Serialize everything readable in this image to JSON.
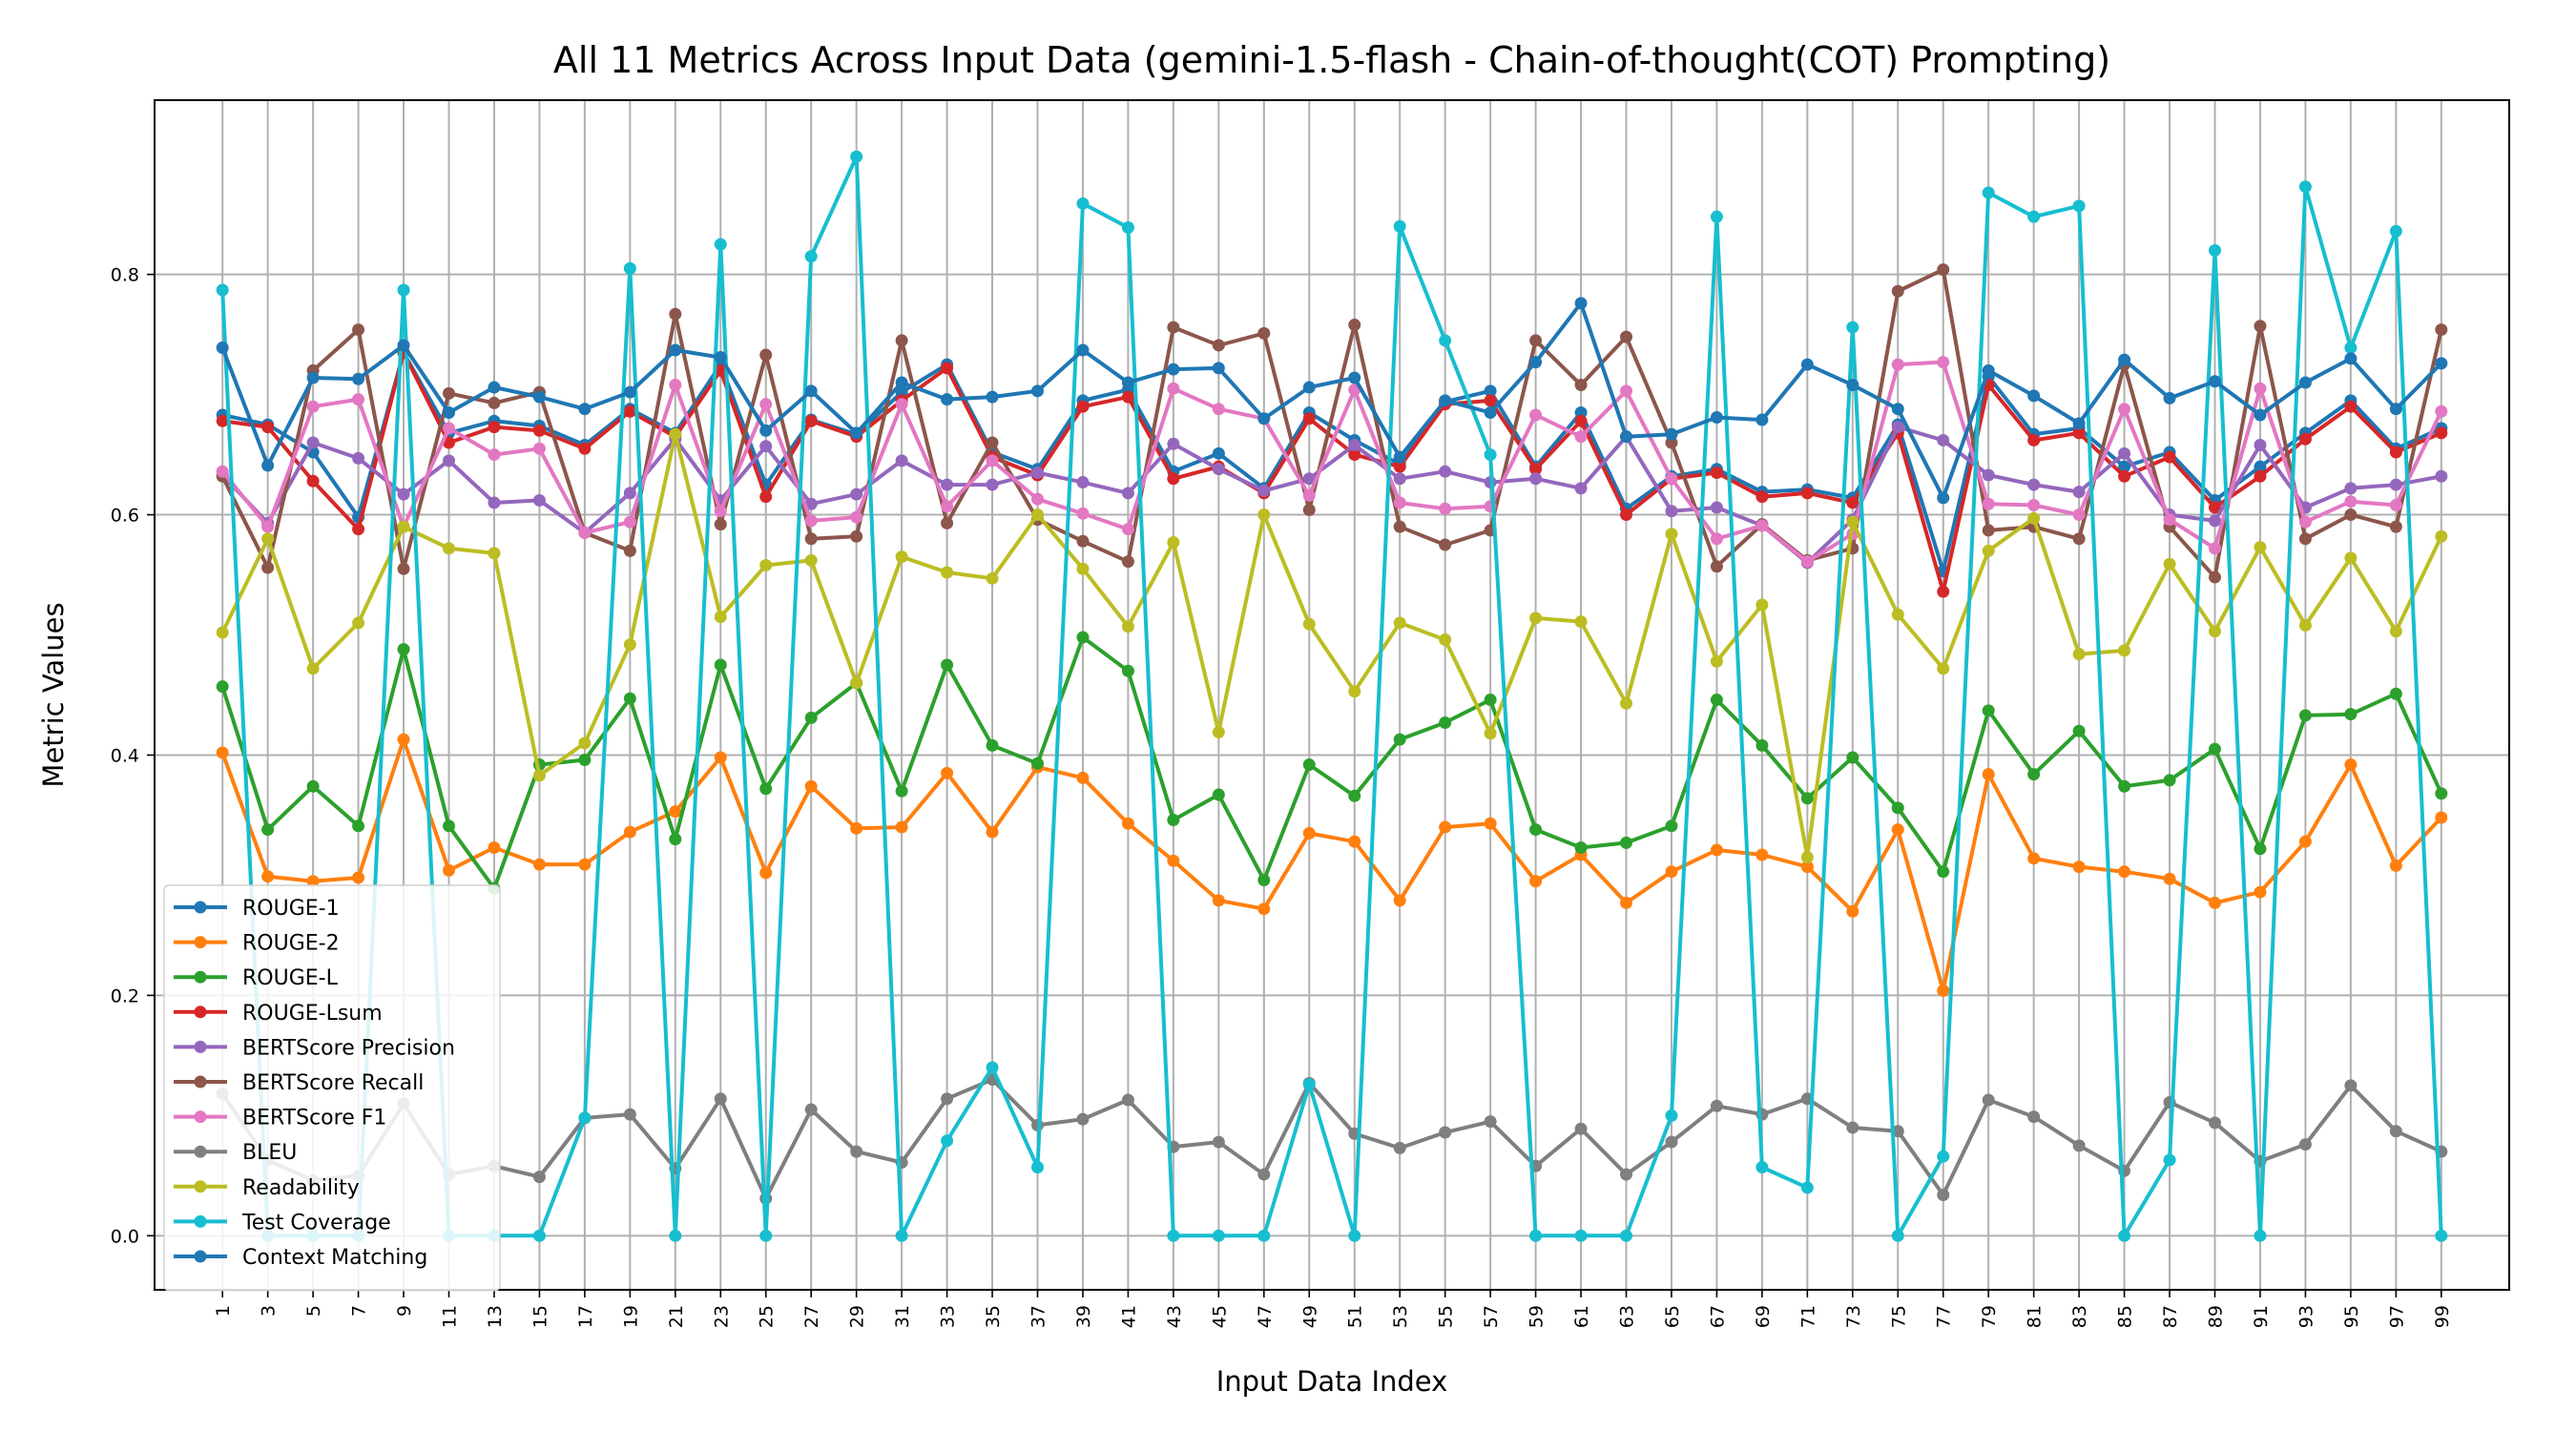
{
  "chart_data": {
    "type": "line",
    "title": "All 11 Metrics Across Input Data (gemini-1.5-flash - Chain-of-thought(COT) Prompting)",
    "xlabel": "Input Data Index",
    "ylabel": "Metric Values",
    "ylim": [
      -0.045,
      0.945
    ],
    "yticks": [
      0.0,
      0.2,
      0.4,
      0.6,
      0.8
    ],
    "ytick_labels": [
      "0.0",
      "0.2",
      "0.4",
      "0.6",
      "0.8"
    ],
    "x": [
      1,
      3,
      5,
      7,
      9,
      11,
      13,
      15,
      17,
      19,
      21,
      23,
      25,
      27,
      29,
      31,
      33,
      35,
      37,
      39,
      41,
      43,
      45,
      47,
      49,
      51,
      53,
      55,
      57,
      59,
      61,
      63,
      65,
      67,
      69,
      71,
      73,
      75,
      77,
      79,
      81,
      83,
      85,
      87,
      89,
      91,
      93,
      95,
      97,
      99
    ],
    "xtick_labels": [
      "1",
      "3",
      "5",
      "7",
      "9",
      "11",
      "13",
      "15",
      "17",
      "19",
      "21",
      "23",
      "25",
      "27",
      "29",
      "31",
      "33",
      "35",
      "37",
      "39",
      "41",
      "43",
      "45",
      "47",
      "49",
      "51",
      "53",
      "55",
      "57",
      "59",
      "61",
      "63",
      "65",
      "67",
      "69",
      "71",
      "73",
      "75",
      "77",
      "79",
      "81",
      "83",
      "85",
      "87",
      "89",
      "91",
      "93",
      "95",
      "97",
      "99"
    ],
    "grid": true,
    "legend_position": "lower-left",
    "series": [
      {
        "name": "ROUGE-1",
        "color": "#1f77b4",
        "values": [
          0.683,
          0.675,
          0.652,
          0.598,
          0.735,
          0.668,
          0.678,
          0.674,
          0.658,
          0.688,
          0.668,
          0.725,
          0.625,
          0.679,
          0.667,
          0.702,
          0.725,
          0.652,
          0.638,
          0.695,
          0.704,
          0.636,
          0.651,
          0.622,
          0.685,
          0.662,
          0.642,
          0.694,
          0.703,
          0.64,
          0.685,
          0.605,
          0.632,
          0.638,
          0.619,
          0.621,
          0.614,
          0.675,
          0.553,
          0.715,
          0.667,
          0.672,
          0.64,
          0.652,
          0.612,
          0.64,
          0.668,
          0.695,
          0.655,
          0.672
        ]
      },
      {
        "name": "ROUGE-2",
        "color": "#ff7f0e",
        "values": [
          0.402,
          0.299,
          0.295,
          0.298,
          0.413,
          0.304,
          0.323,
          0.309,
          0.309,
          0.336,
          0.353,
          0.398,
          0.302,
          0.374,
          0.339,
          0.34,
          0.385,
          0.336,
          0.39,
          0.381,
          0.343,
          0.312,
          0.279,
          0.272,
          0.335,
          0.328,
          0.279,
          0.34,
          0.343,
          0.295,
          0.317,
          0.277,
          0.303,
          0.321,
          0.317,
          0.307,
          0.27,
          0.338,
          0.204,
          0.384,
          0.314,
          0.307,
          0.303,
          0.297,
          0.277,
          0.286,
          0.328,
          0.392,
          0.308,
          0.348
        ]
      },
      {
        "name": "ROUGE-L",
        "color": "#2ca02c",
        "values": [
          0.457,
          0.338,
          0.374,
          0.341,
          0.488,
          0.341,
          0.289,
          0.392,
          0.396,
          0.447,
          0.33,
          0.475,
          0.372,
          0.431,
          0.46,
          0.37,
          0.475,
          0.408,
          0.393,
          0.498,
          0.47,
          0.346,
          0.367,
          0.296,
          0.392,
          0.366,
          0.413,
          0.427,
          0.446,
          0.338,
          0.323,
          0.327,
          0.341,
          0.446,
          0.408,
          0.364,
          0.398,
          0.356,
          0.303,
          0.437,
          0.384,
          0.42,
          0.374,
          0.379,
          0.405,
          0.322,
          0.433,
          0.434,
          0.451,
          0.368
        ]
      },
      {
        "name": "ROUGE-Lsum",
        "color": "#d62728",
        "values": [
          0.678,
          0.673,
          0.628,
          0.588,
          0.735,
          0.66,
          0.673,
          0.67,
          0.655,
          0.686,
          0.665,
          0.72,
          0.615,
          0.678,
          0.665,
          0.695,
          0.722,
          0.648,
          0.633,
          0.69,
          0.698,
          0.63,
          0.64,
          0.618,
          0.68,
          0.65,
          0.64,
          0.692,
          0.695,
          0.638,
          0.678,
          0.6,
          0.63,
          0.635,
          0.615,
          0.618,
          0.61,
          0.668,
          0.536,
          0.708,
          0.662,
          0.668,
          0.632,
          0.648,
          0.606,
          0.632,
          0.663,
          0.69,
          0.652,
          0.668
        ]
      },
      {
        "name": "BERTScore Precision",
        "color": "#9467bd",
        "values": [
          0.633,
          0.593,
          0.66,
          0.647,
          0.617,
          0.645,
          0.61,
          0.612,
          0.585,
          0.618,
          0.663,
          0.612,
          0.657,
          0.609,
          0.617,
          0.645,
          0.625,
          0.625,
          0.635,
          0.627,
          0.618,
          0.659,
          0.638,
          0.62,
          0.63,
          0.658,
          0.63,
          0.636,
          0.627,
          0.63,
          0.622,
          0.665,
          0.603,
          0.606,
          0.591,
          0.56,
          0.596,
          0.673,
          0.662,
          0.633,
          0.625,
          0.619,
          0.651,
          0.6,
          0.595,
          0.658,
          0.606,
          0.622,
          0.625,
          0.632
        ]
      },
      {
        "name": "BERTScore Recall",
        "color": "#8c564b",
        "values": [
          0.632,
          0.556,
          0.72,
          0.754,
          0.555,
          0.701,
          0.693,
          0.702,
          0.585,
          0.57,
          0.767,
          0.592,
          0.733,
          0.58,
          0.582,
          0.745,
          0.593,
          0.66,
          0.596,
          0.578,
          0.561,
          0.756,
          0.741,
          0.751,
          0.604,
          0.758,
          0.59,
          0.575,
          0.587,
          0.745,
          0.708,
          0.748,
          0.66,
          0.557,
          0.592,
          0.562,
          0.572,
          0.786,
          0.804,
          0.587,
          0.59,
          0.58,
          0.725,
          0.59,
          0.548,
          0.757,
          0.58,
          0.6,
          0.59,
          0.754
        ]
      },
      {
        "name": "BERTScore F1",
        "color": "#e377c2",
        "values": [
          0.636,
          0.59,
          0.69,
          0.696,
          0.59,
          0.672,
          0.65,
          0.655,
          0.585,
          0.594,
          0.708,
          0.603,
          0.692,
          0.595,
          0.598,
          0.692,
          0.607,
          0.645,
          0.613,
          0.601,
          0.588,
          0.705,
          0.688,
          0.68,
          0.616,
          0.704,
          0.61,
          0.605,
          0.607,
          0.683,
          0.665,
          0.703,
          0.63,
          0.58,
          0.591,
          0.561,
          0.584,
          0.725,
          0.727,
          0.609,
          0.608,
          0.6,
          0.688,
          0.596,
          0.572,
          0.705,
          0.594,
          0.611,
          0.608,
          0.686
        ]
      },
      {
        "name": "BLEU",
        "color": "#7f7f7f",
        "values": [
          0.118,
          0.063,
          0.046,
          0.05,
          0.11,
          0.051,
          0.058,
          0.049,
          0.098,
          0.101,
          0.056,
          0.114,
          0.031,
          0.105,
          0.07,
          0.061,
          0.114,
          0.13,
          0.092,
          0.097,
          0.113,
          0.074,
          0.078,
          0.051,
          0.127,
          0.085,
          0.073,
          0.086,
          0.095,
          0.058,
          0.089,
          0.051,
          0.078,
          0.108,
          0.101,
          0.114,
          0.09,
          0.087,
          0.034,
          0.113,
          0.099,
          0.075,
          0.054,
          0.111,
          0.094,
          0.062,
          0.076,
          0.125,
          0.087,
          0.07
        ]
      },
      {
        "name": "Readability",
        "color": "#bcbd22",
        "values": [
          0.502,
          0.58,
          0.472,
          0.51,
          0.59,
          0.572,
          0.568,
          0.383,
          0.41,
          0.492,
          0.667,
          0.515,
          0.558,
          0.562,
          0.46,
          0.565,
          0.552,
          0.547,
          0.6,
          0.555,
          0.507,
          0.577,
          0.419,
          0.6,
          0.509,
          0.453,
          0.51,
          0.496,
          0.418,
          0.514,
          0.511,
          0.443,
          0.584,
          0.478,
          0.525,
          0.315,
          0.594,
          0.517,
          0.472,
          0.57,
          0.597,
          0.484,
          0.487,
          0.559,
          0.503,
          0.573,
          0.508,
          0.564,
          0.503,
          0.582
        ]
      },
      {
        "name": "Test Coverage",
        "color": "#17becf",
        "values": [
          0.787,
          0.0,
          0.0,
          0.0,
          0.787,
          0.0,
          0.0,
          0.0,
          0.098,
          0.805,
          0.0,
          0.825,
          0.0,
          0.815,
          0.898,
          0.0,
          0.079,
          0.14,
          0.057,
          0.859,
          0.839,
          0.0,
          0.0,
          0.0,
          0.126,
          0.0,
          0.84,
          0.745,
          0.65,
          0.0,
          0.0,
          0.0,
          0.1,
          0.848,
          0.057,
          0.04,
          0.756,
          0.0,
          0.066,
          0.868,
          0.848,
          0.857,
          0.0,
          0.063,
          0.82,
          0.0,
          0.873,
          0.739,
          0.836,
          0.0
        ]
      },
      {
        "name": "Context Matching",
        "color": "#1f77b4",
        "values": [
          0.739,
          0.641,
          0.714,
          0.713,
          0.741,
          0.685,
          0.706,
          0.698,
          0.688,
          0.702,
          0.737,
          0.731,
          0.67,
          0.703,
          0.668,
          0.71,
          0.696,
          0.698,
          0.703,
          0.737,
          0.71,
          0.721,
          0.722,
          0.68,
          0.706,
          0.714,
          0.648,
          0.695,
          0.685,
          0.727,
          0.776,
          0.665,
          0.667,
          0.681,
          0.679,
          0.725,
          0.708,
          0.688,
          0.614,
          0.72,
          0.699,
          0.676,
          0.729,
          0.697,
          0.711,
          0.683,
          0.71,
          0.73,
          0.688,
          0.726
        ]
      }
    ]
  }
}
